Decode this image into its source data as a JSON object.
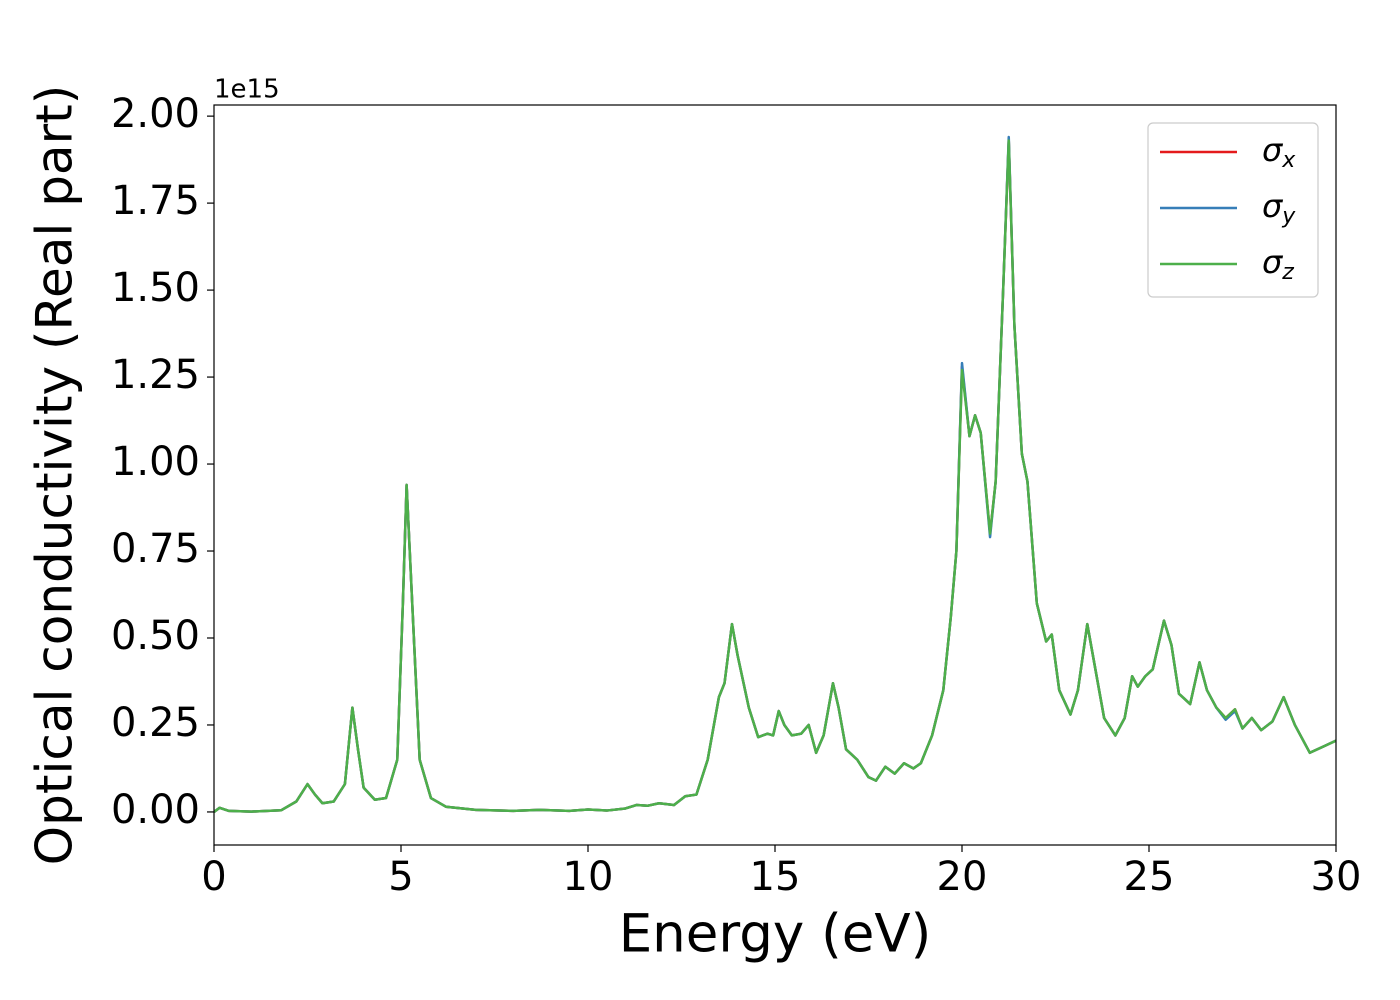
{
  "chart_data": {
    "type": "line",
    "xlabel": "Energy (eV)",
    "ylabel": "Optical conductivity (Real part)",
    "y_offset_label": "1e15",
    "xlim": [
      0,
      30
    ],
    "ylim": [
      -0.095,
      2.032
    ],
    "xticks": [
      0,
      5,
      10,
      15,
      20,
      25,
      30
    ],
    "yticks": [
      {
        "value": 0,
        "label": "0.00"
      },
      {
        "value": 0.25,
        "label": "0.25"
      },
      {
        "value": 0.5,
        "label": "0.50"
      },
      {
        "value": 0.75,
        "label": "0.75"
      },
      {
        "value": 1,
        "label": "1.00"
      },
      {
        "value": 1.25,
        "label": "1.25"
      },
      {
        "value": 1.5,
        "label": "1.50"
      },
      {
        "value": 1.75,
        "label": "1.75"
      },
      {
        "value": 2,
        "label": "2.00"
      }
    ],
    "legend": "upper right",
    "x": [
      0,
      0.15,
      0.4,
      1.0,
      1.8,
      2.2,
      2.5,
      2.7,
      2.9,
      3.2,
      3.5,
      3.7,
      3.85,
      4.0,
      4.3,
      4.6,
      4.9,
      5.05,
      5.15,
      5.3,
      5.5,
      5.8,
      6.2,
      7,
      8,
      8.7,
      9.5,
      10,
      10.5,
      11,
      11.3,
      11.6,
      11.9,
      12.3,
      12.6,
      12.9,
      13.2,
      13.5,
      13.65,
      13.85,
      14.0,
      14.3,
      14.55,
      14.8,
      14.95,
      15.1,
      15.25,
      15.45,
      15.7,
      15.9,
      16.1,
      16.3,
      16.55,
      16.7,
      16.9,
      17.2,
      17.5,
      17.7,
      17.95,
      18.2,
      18.45,
      18.7,
      18.9,
      19.2,
      19.5,
      19.7,
      19.85,
      20.0,
      20.2,
      20.35,
      20.5,
      20.75,
      20.9,
      21.1,
      21.25,
      21.4,
      21.6,
      21.75,
      22.0,
      22.25,
      22.4,
      22.6,
      22.9,
      23.1,
      23.35,
      23.5,
      23.8,
      24.1,
      24.35,
      24.55,
      24.7,
      24.9,
      25.1,
      25.4,
      25.6,
      25.8,
      26.1,
      26.35,
      26.55,
      26.8,
      27.05,
      27.3,
      27.5,
      27.75,
      28.0,
      28.3,
      28.6,
      28.9,
      29.3,
      29.7,
      30.0
    ],
    "series": [
      {
        "name": "σx",
        "color": "#e41a1c",
        "values": [
          0,
          0.012,
          0.003,
          0.001,
          0.005,
          0.03,
          0.08,
          0.05,
          0.025,
          0.03,
          0.08,
          0.3,
          0.18,
          0.07,
          0.035,
          0.04,
          0.15,
          0.6,
          0.94,
          0.6,
          0.15,
          0.04,
          0.015,
          0.006,
          0.003,
          0.006,
          0.003,
          0.007,
          0.004,
          0.01,
          0.02,
          0.018,
          0.025,
          0.02,
          0.045,
          0.05,
          0.15,
          0.33,
          0.37,
          0.54,
          0.45,
          0.3,
          0.215,
          0.225,
          0.22,
          0.29,
          0.25,
          0.22,
          0.225,
          0.25,
          0.17,
          0.22,
          0.37,
          0.3,
          0.18,
          0.15,
          0.1,
          0.09,
          0.13,
          0.11,
          0.14,
          0.125,
          0.14,
          0.22,
          0.35,
          0.56,
          0.75,
          1.28,
          1.08,
          1.14,
          1.09,
          0.8,
          0.95,
          1.5,
          1.93,
          1.4,
          1.03,
          0.95,
          0.6,
          0.49,
          0.51,
          0.35,
          0.28,
          0.35,
          0.54,
          0.45,
          0.27,
          0.22,
          0.27,
          0.39,
          0.36,
          0.39,
          0.41,
          0.55,
          0.48,
          0.34,
          0.31,
          0.43,
          0.35,
          0.3,
          0.27,
          0.295,
          0.24,
          0.27,
          0.235,
          0.26,
          0.33,
          0.25,
          0.17,
          0.19,
          0.205
        ]
      },
      {
        "name": "σy",
        "color": "#377eb8",
        "values": [
          0,
          0.012,
          0.003,
          0.001,
          0.005,
          0.03,
          0.08,
          0.05,
          0.025,
          0.03,
          0.08,
          0.3,
          0.18,
          0.07,
          0.035,
          0.04,
          0.15,
          0.6,
          0.94,
          0.6,
          0.15,
          0.04,
          0.015,
          0.006,
          0.003,
          0.006,
          0.003,
          0.007,
          0.004,
          0.01,
          0.02,
          0.018,
          0.025,
          0.02,
          0.045,
          0.05,
          0.15,
          0.33,
          0.37,
          0.54,
          0.45,
          0.3,
          0.215,
          0.225,
          0.22,
          0.29,
          0.25,
          0.22,
          0.225,
          0.25,
          0.17,
          0.22,
          0.37,
          0.3,
          0.18,
          0.15,
          0.1,
          0.09,
          0.13,
          0.11,
          0.14,
          0.125,
          0.14,
          0.22,
          0.35,
          0.56,
          0.75,
          1.29,
          1.08,
          1.14,
          1.09,
          0.79,
          0.95,
          1.5,
          1.94,
          1.4,
          1.03,
          0.95,
          0.6,
          0.49,
          0.51,
          0.35,
          0.28,
          0.35,
          0.54,
          0.45,
          0.27,
          0.22,
          0.27,
          0.39,
          0.36,
          0.39,
          0.41,
          0.55,
          0.48,
          0.34,
          0.31,
          0.43,
          0.35,
          0.3,
          0.265,
          0.29,
          0.24,
          0.27,
          0.235,
          0.26,
          0.33,
          0.25,
          0.17,
          0.19,
          0.205
        ]
      },
      {
        "name": "σz",
        "color": "#4daf4a",
        "values": [
          0,
          0.012,
          0.003,
          0.001,
          0.005,
          0.03,
          0.08,
          0.05,
          0.025,
          0.03,
          0.08,
          0.3,
          0.18,
          0.07,
          0.035,
          0.04,
          0.15,
          0.6,
          0.94,
          0.6,
          0.15,
          0.04,
          0.015,
          0.006,
          0.003,
          0.006,
          0.003,
          0.007,
          0.004,
          0.01,
          0.02,
          0.018,
          0.025,
          0.02,
          0.045,
          0.05,
          0.15,
          0.33,
          0.37,
          0.54,
          0.45,
          0.3,
          0.215,
          0.225,
          0.22,
          0.29,
          0.25,
          0.22,
          0.225,
          0.25,
          0.17,
          0.22,
          0.37,
          0.3,
          0.18,
          0.15,
          0.1,
          0.09,
          0.13,
          0.11,
          0.14,
          0.125,
          0.14,
          0.22,
          0.35,
          0.56,
          0.75,
          1.27,
          1.08,
          1.14,
          1.09,
          0.8,
          0.95,
          1.5,
          1.93,
          1.4,
          1.03,
          0.95,
          0.6,
          0.49,
          0.51,
          0.35,
          0.28,
          0.35,
          0.54,
          0.45,
          0.27,
          0.22,
          0.27,
          0.39,
          0.36,
          0.39,
          0.41,
          0.55,
          0.48,
          0.34,
          0.31,
          0.43,
          0.35,
          0.3,
          0.27,
          0.295,
          0.24,
          0.27,
          0.235,
          0.26,
          0.33,
          0.25,
          0.17,
          0.19,
          0.205
        ]
      }
    ]
  }
}
